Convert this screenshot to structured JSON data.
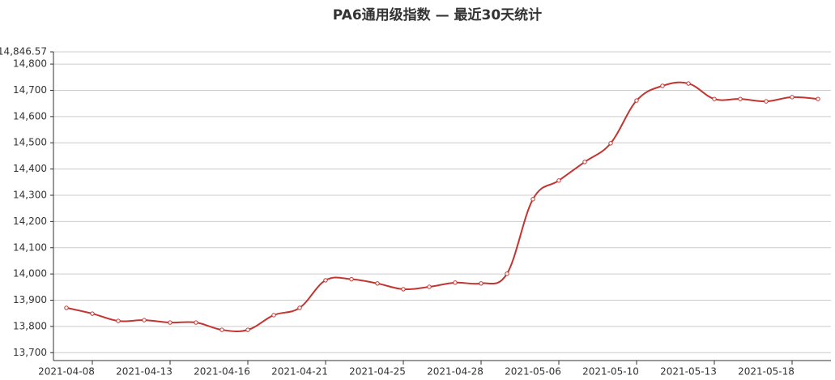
{
  "chart_data": {
    "type": "line",
    "title": "PA6通用级指数 — 最近30天统计",
    "categories": [
      "2021-04-08",
      null,
      null,
      "2021-04-13",
      null,
      null,
      "2021-04-16",
      null,
      null,
      "2021-04-21",
      null,
      null,
      "2021-04-25",
      null,
      null,
      "2021-04-28",
      null,
      null,
      "2021-05-06",
      null,
      null,
      "2021-05-10",
      null,
      null,
      "2021-05-13",
      null,
      null,
      "2021-05-18",
      null,
      null
    ],
    "series": [
      {
        "color": "#c23531",
        "values": [
          13871,
          13849,
          13821,
          13824,
          13815,
          13815,
          13787,
          13787,
          13843,
          13871,
          13976,
          13980,
          13964,
          13942,
          13951,
          13967,
          13964,
          14001,
          14285,
          14356,
          14427,
          14498,
          14661,
          14717,
          14726,
          14667,
          14667,
          14658,
          14674,
          14667
        ]
      }
    ],
    "ylim": [
      13670,
      14846.57
    ],
    "yticks": [
      {
        "value": 13700,
        "label": "13,700"
      },
      {
        "value": 13800,
        "label": "13,800"
      },
      {
        "value": 13900,
        "label": "13,900"
      },
      {
        "value": 14000,
        "label": "14,000"
      },
      {
        "value": 14100,
        "label": "14,100"
      },
      {
        "value": 14200,
        "label": "14,200"
      },
      {
        "value": 14300,
        "label": "14,300"
      },
      {
        "value": 14400,
        "label": "14,400"
      },
      {
        "value": 14500,
        "label": "14,500"
      },
      {
        "value": 14600,
        "label": "14,600"
      },
      {
        "value": 14700,
        "label": "14,700"
      },
      {
        "value": 14800,
        "label": "14,800"
      },
      {
        "value": 14846.57,
        "label": "14,846.57"
      }
    ],
    "grid": true
  }
}
